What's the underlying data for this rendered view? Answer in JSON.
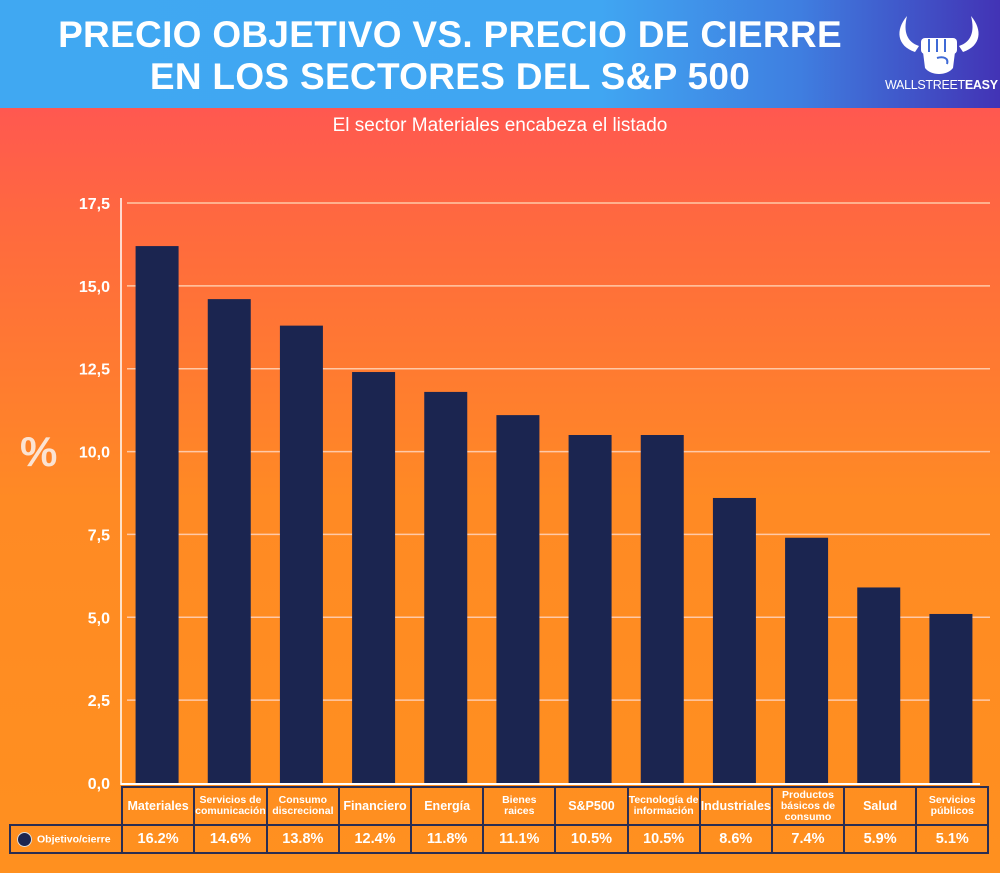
{
  "header": {
    "title_line1": "PRECIO OBJETIVO VS. PRECIO DE CIERRE",
    "title_line2": "EN LOS SECTORES DEL S&P 500",
    "logo_text_light": "WALLSTREET",
    "logo_text_bold": "EASY",
    "logo_icon": "bull-fist-icon"
  },
  "subtitle": "El sector Materiales encabeza el listado",
  "colors": {
    "bar": "#1b2550",
    "header_start": "#40a8f2",
    "header_end": "#4233b5",
    "bg_top": "#ff5850",
    "bg_bottom": "#ff901f"
  },
  "chart_data": {
    "type": "bar",
    "title": "PRECIO OBJETIVO VS. PRECIO DE CIERRE EN LOS SECTORES DEL S&P 500",
    "subtitle": "El sector Materiales encabeza el listado",
    "ylabel": "%",
    "xlabel": "",
    "ylim": [
      0,
      17.5
    ],
    "yticks": [
      "0,0",
      "2,5",
      "5,0",
      "7,5",
      "10,0",
      "12,5",
      "15,0",
      "17,5"
    ],
    "ytick_values": [
      0,
      2.5,
      5,
      7.5,
      10,
      12.5,
      15,
      17.5
    ],
    "grid": true,
    "categories": [
      "Materiales",
      "Servicios de comunicación",
      "Consumo discrecional",
      "Financiero",
      "Energía",
      "Bienes raices",
      "S&P500",
      "Tecnología de información",
      "Industriales",
      "Productos básicos de consumo",
      "Salud",
      "Servicios públicos"
    ],
    "series": [
      {
        "name": "Objetivo/cierre",
        "values": [
          16.2,
          14.6,
          13.8,
          12.4,
          11.8,
          11.1,
          10.5,
          10.5,
          8.6,
          7.4,
          5.9,
          5.1
        ]
      }
    ],
    "value_labels": [
      "16.2%",
      "14.6%",
      "13.8%",
      "12.4%",
      "11.8%",
      "11.1%",
      "10.5%",
      "10.5%",
      "8.6%",
      "7.4%",
      "5.9%",
      "5.1%"
    ],
    "legend": "bottom-left data table"
  },
  "table": {
    "legend_label": "Objetivo/cierre",
    "headers": [
      [
        "Materiales"
      ],
      [
        "Servicios de",
        "comunicación"
      ],
      [
        "Consumo",
        "discrecional"
      ],
      [
        "Financiero"
      ],
      [
        "Energía"
      ],
      [
        "Bienes",
        "raices"
      ],
      [
        "S&P500"
      ],
      [
        "Tecnología de",
        "información"
      ],
      [
        "Industriales"
      ],
      [
        "Productos",
        "básicos de",
        "consumo"
      ],
      [
        "Salud"
      ],
      [
        "Servicios",
        "públicos"
      ]
    ]
  }
}
